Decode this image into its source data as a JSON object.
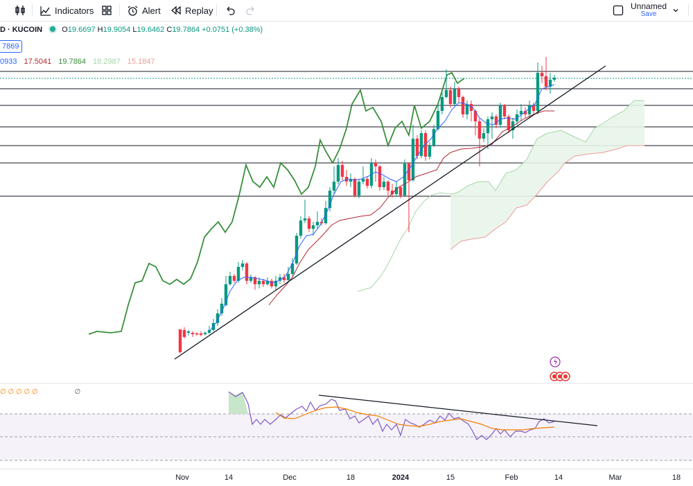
{
  "toolbar": {
    "indicators_label": "Indicators",
    "alert_label": "Alert",
    "replay_label": "Replay",
    "layout_name": "Unnamed",
    "save_label": "Save"
  },
  "legend": {
    "symbol": "D · KUCOIN",
    "open_label": "O",
    "open": "19.6697",
    "high_label": "H",
    "high": "19.9054",
    "low_label": "L",
    "low": "19.6462",
    "close_label": "C",
    "close": "19.7864",
    "change": "+0.0751 (+0.38%)",
    "price_badge": "7869"
  },
  "ichimoku_values": [
    {
      "text": "0933",
      "color": "#2962ff"
    },
    {
      "text": "17.5041",
      "color": "#b22833"
    },
    {
      "text": "19.7864",
      "color": "#388e3c"
    },
    {
      "text": "18.2987",
      "color": "#a5d6a7"
    },
    {
      "text": "15.1847",
      "color": "#ef9a9a"
    }
  ],
  "rsi_legend": "∅ ∅ ∅ ∅ ∅",
  "rsi_extra": "∅",
  "x_axis": {
    "labels": [
      "Nov",
      "14",
      "Dec",
      "18",
      "2024",
      "15",
      "Feb",
      "14",
      "Mar",
      "18"
    ],
    "bold_label": "2024"
  },
  "colors": {
    "up": "#089981",
    "down": "#f23645",
    "tenkan": "#2962ff",
    "kijun": "#b22833",
    "lagging": "#388e3c",
    "cloud": "#e8f5e9",
    "rsi": "#7e57c2",
    "rsi_ma": "#f57c00"
  },
  "chart_data": {
    "type": "candlestick",
    "x_ticks": [
      "Nov",
      "14",
      "Dec",
      "18",
      "2024",
      "15",
      "Feb",
      "14",
      "Mar",
      "18"
    ],
    "last": {
      "open": 19.6697,
      "high": 19.9054,
      "low": 19.6462,
      "close": 19.7864,
      "change": 0.0751,
      "change_pct": 0.38
    },
    "indicators": [
      "Ichimoku Cloud",
      "RSI"
    ]
  }
}
